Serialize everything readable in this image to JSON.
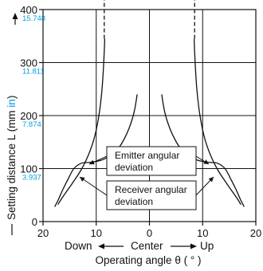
{
  "chart_data": {
    "type": "line",
    "x_axis": {
      "label": "Operating angle θ ( ° )",
      "direction_left": "Down",
      "direction_center": "Center",
      "direction_right": "Up",
      "ticks": [
        "20",
        "10",
        "0",
        "10",
        "20"
      ],
      "range": [
        -20,
        20
      ]
    },
    "y_axis": {
      "label_main": "Setting distance L (mm ",
      "label_unit": "in",
      "label_close": ")",
      "ticks_mm": [
        "0",
        "100",
        "200",
        "300",
        "400"
      ],
      "ticks_in": [
        "3.937",
        "7.874",
        "11.811",
        "15.748"
      ],
      "range": [
        0,
        400
      ]
    },
    "grid": true,
    "series": [
      {
        "name": "Emitter angular deviation",
        "style": "solid",
        "segments": [
          {
            "x": [
              8.4,
              8.5,
              8.7,
              9.0,
              9.5,
              10.3,
              11.3,
              12.7,
              14.3,
              15.7,
              16.6,
              17.2
            ],
            "y": [
              345,
              320,
              280,
              240,
              200,
              160,
              130,
              100,
              75,
              55,
              42,
              32
            ]
          },
          {
            "x": [
              8.5,
              8.5
            ],
            "y": [
              345,
              425
            ]
          },
          {
            "x": [
              -8.4,
              -8.5,
              -8.7,
              -9.0,
              -9.5,
              -10.3,
              -11.3,
              -12.7,
              -14.3,
              -15.7,
              -16.6,
              -17.2
            ],
            "y": [
              345,
              320,
              280,
              240,
              200,
              160,
              130,
              100,
              75,
              55,
              42,
              32
            ]
          },
          {
            "x": [
              -8.5,
              -8.5
            ],
            "y": [
              345,
              425
            ]
          }
        ]
      },
      {
        "name": "Receiver angular deviation",
        "style": "solid",
        "segments": [
          {
            "x": [
              2.3,
              2.8,
              3.5,
              4.3,
              5.5,
              7.0,
              9.0,
              11.0,
              12.8,
              14.2,
              15.3,
              16.3,
              17.1,
              17.8
            ],
            "y": [
              240,
              210,
              185,
              165,
              143,
              127,
              116,
              112,
              110,
              100,
              80,
              60,
              42,
              28
            ]
          },
          {
            "x": [
              -2.3,
              -2.8,
              -3.5,
              -4.3,
              -5.5,
              -7.0,
              -9.0,
              -11.0,
              -12.8,
              -14.2,
              -15.3,
              -16.3,
              -17.1,
              -17.8
            ],
            "y": [
              240,
              210,
              185,
              165,
              143,
              127,
              116,
              112,
              110,
              100,
              80,
              60,
              42,
              28
            ]
          }
        ]
      }
    ],
    "annotations": [
      {
        "lines": [
          "Emitter angular",
          "deviation"
        ]
      },
      {
        "lines": [
          "Receiver angular",
          "deviation"
        ]
      }
    ]
  },
  "colors": {
    "axis": "#111111",
    "grid": "#111111",
    "curve": "#111111",
    "inch_ticks": "#00a0e0"
  }
}
